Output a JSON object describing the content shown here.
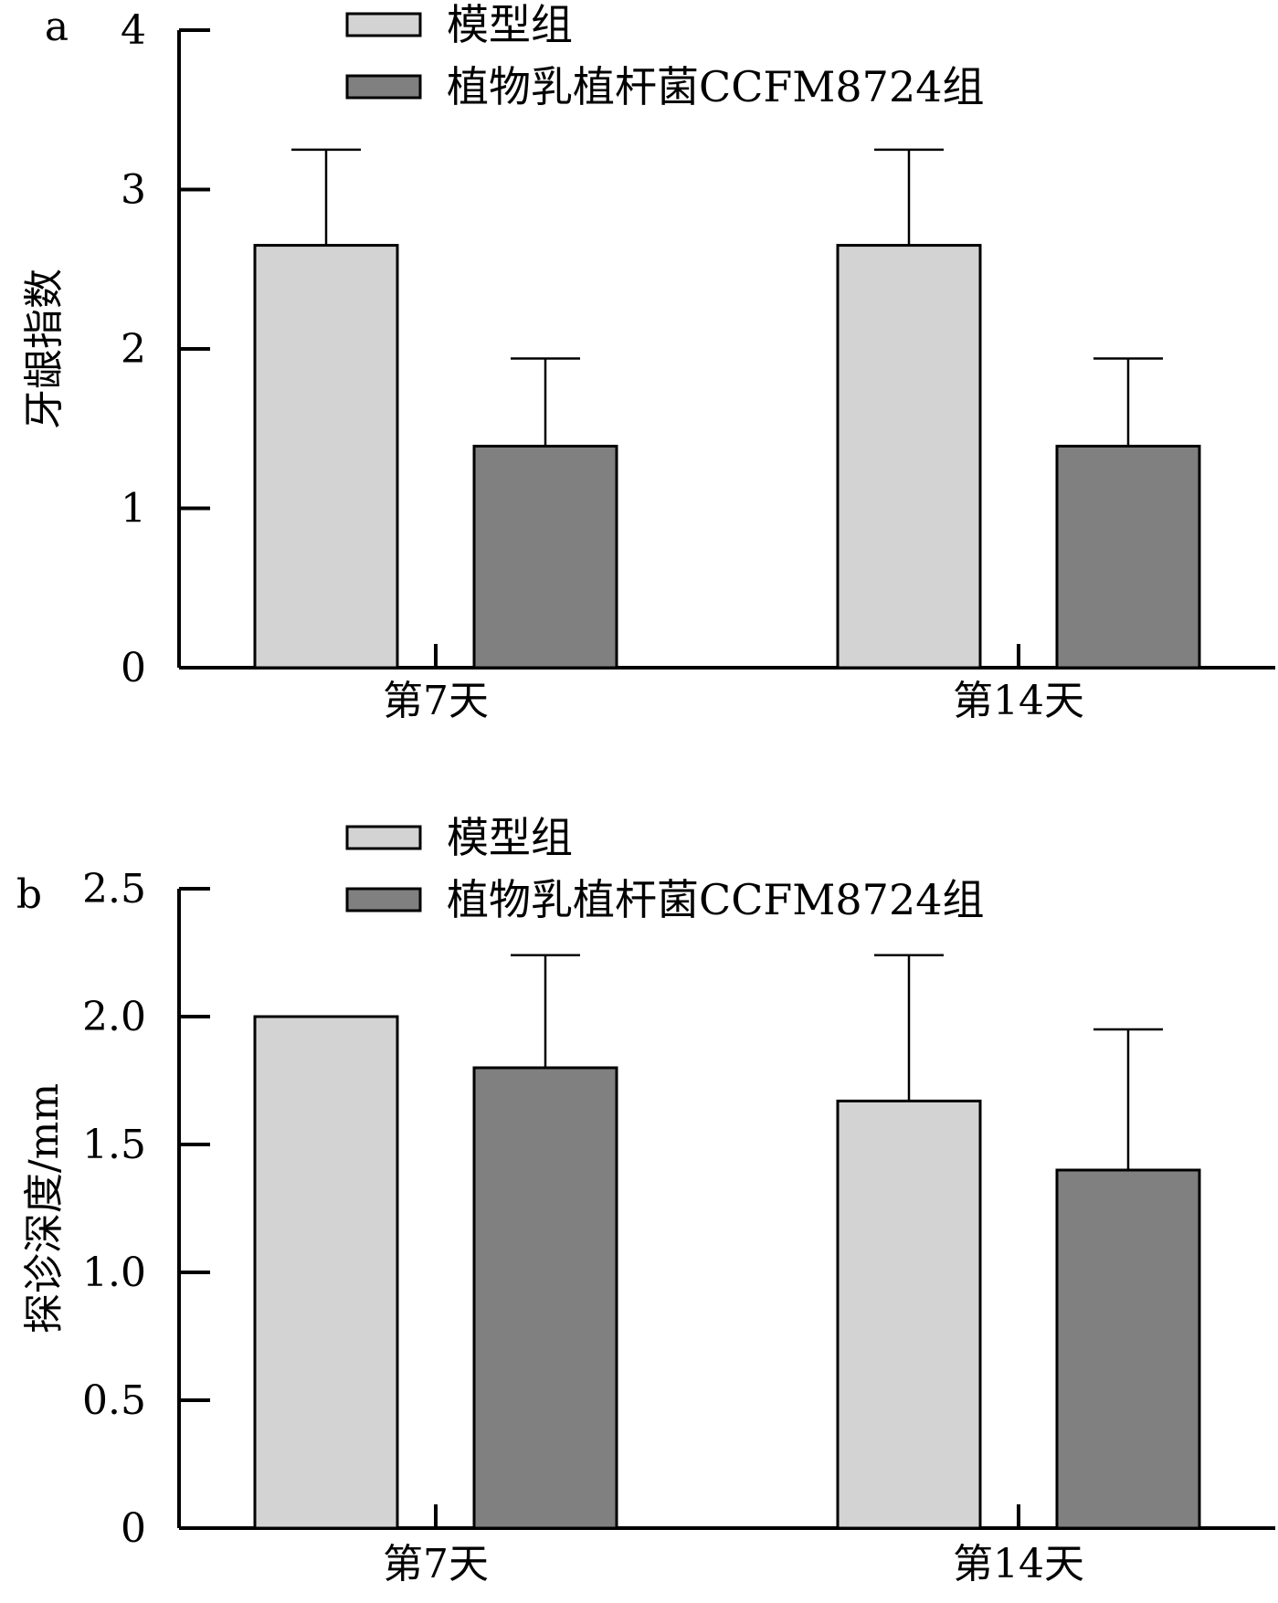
{
  "chart_data": [
    {
      "type": "bar",
      "panel_label": "a",
      "ylabel": "牙龈指数",
      "ylim": [
        0,
        4
      ],
      "yticks": [
        0,
        1,
        2,
        3,
        4
      ],
      "ytick_labels": [
        "0",
        "1",
        "2",
        "3",
        "4"
      ],
      "categories": [
        "第7天",
        "第14天"
      ],
      "series": [
        {
          "name": "模型组",
          "color": "#d3d3d3",
          "values": [
            2.65,
            2.65
          ],
          "errors": [
            0.6,
            0.6
          ]
        },
        {
          "name": "植物乳植杆菌CCFM8724组",
          "color": "#808080",
          "values": [
            1.39,
            1.39
          ],
          "errors": [
            0.55,
            0.55
          ]
        }
      ],
      "legend": "top-center",
      "grid": false
    },
    {
      "type": "bar",
      "panel_label": "b",
      "ylabel": "探诊深度/mm",
      "ylim": [
        0,
        2.5
      ],
      "yticks": [
        0,
        0.5,
        1.0,
        1.5,
        2.0,
        2.5
      ],
      "ytick_labels": [
        "0",
        "0.5",
        "1.0",
        "1.5",
        "2.0",
        "2.5"
      ],
      "categories": [
        "第7天",
        "第14天"
      ],
      "series": [
        {
          "name": "模型组",
          "color": "#d3d3d3",
          "values": [
            2.0,
            1.67
          ],
          "errors": [
            0,
            0.57
          ]
        },
        {
          "name": "植物乳植杆菌CCFM8724组",
          "color": "#808080",
          "values": [
            1.8,
            1.4
          ],
          "errors": [
            0.44,
            0.55
          ]
        }
      ],
      "legend": "top-center",
      "grid": false
    }
  ]
}
